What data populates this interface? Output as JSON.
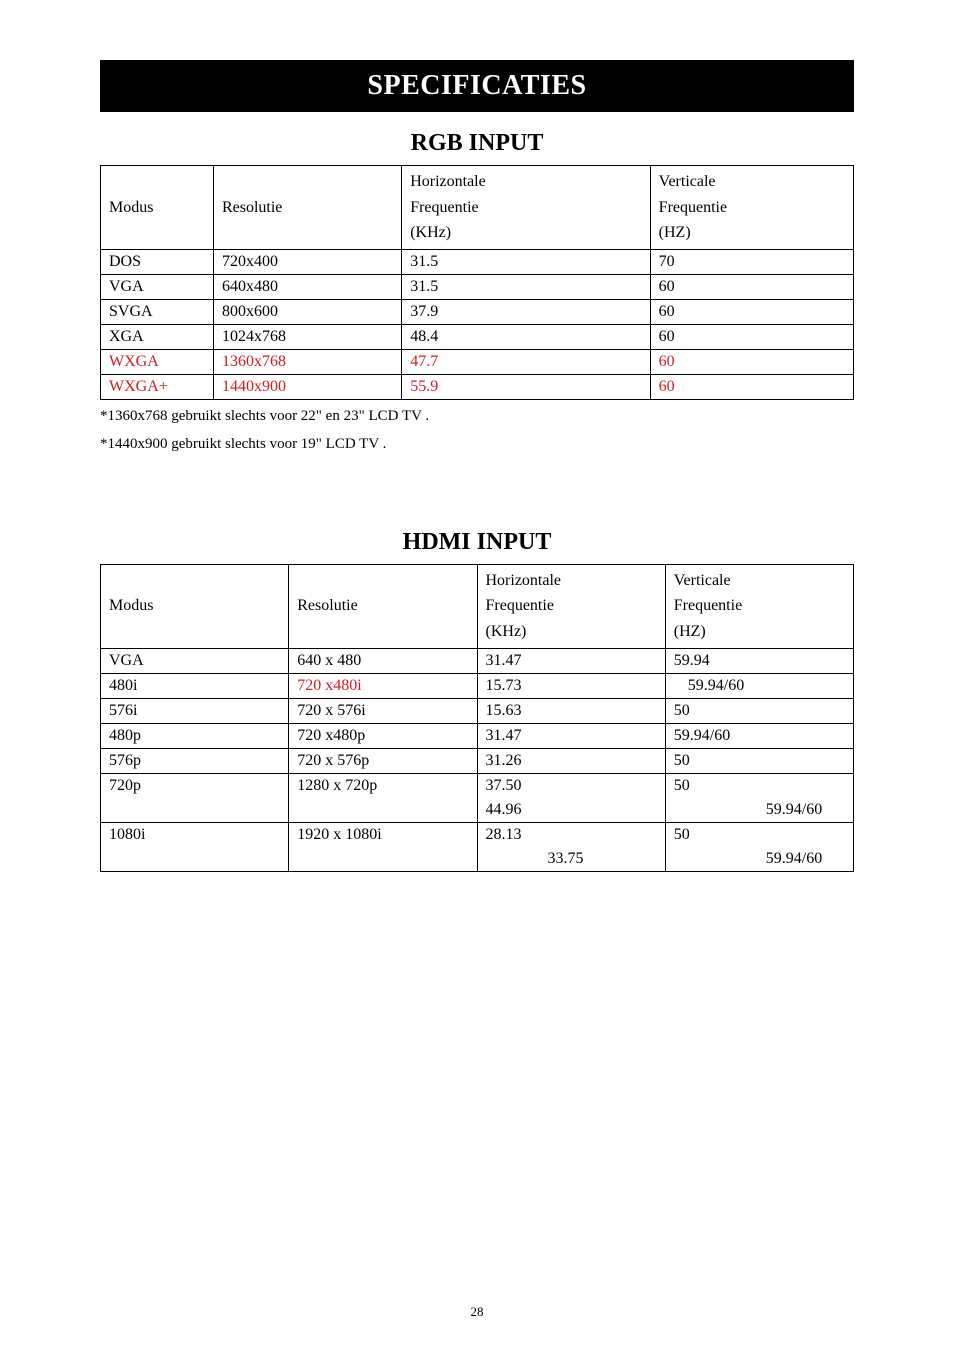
{
  "banner_title": "SPECIFICATIES",
  "page_number": "28",
  "rgb": {
    "title": "RGB INPUT",
    "headers": {
      "modus": "Modus",
      "resolutie": "Resolutie",
      "h1": "Horizontale",
      "h2": "Frequentie",
      "h3": "(KHz)",
      "v1": "Verticale",
      "v2": "Frequentie",
      "v3": "(HZ)"
    },
    "rows": [
      {
        "modus": "DOS",
        "res": "720x400",
        "h": "31.5",
        "v": "70",
        "red": false
      },
      {
        "modus": "VGA",
        "res": "640x480",
        "h": "31.5",
        "v": "60",
        "red": false
      },
      {
        "modus": "SVGA",
        "res": "800x600",
        "h": "37.9",
        "v": "60",
        "red": false
      },
      {
        "modus": "XGA",
        "res": "1024x768",
        "h": "48.4",
        "v": "60",
        "red": false
      },
      {
        "modus": "WXGA",
        "res": "1360x768",
        "h": "47.7",
        "v": "60",
        "red": true
      },
      {
        "modus": "WXGA+",
        "res": "1440x900",
        "h": "55.9",
        "v": "60",
        "red": true
      }
    ],
    "footnote1": "*1360x768 gebruikt slechts voor 22\" en 23\" LCD TV .",
    "footnote2": "*1440x900 gebruikt slechts voor 19\" LCD TV ."
  },
  "hdmi": {
    "title": "HDMI INPUT",
    "headers": {
      "modus": "Modus",
      "resolutie": "Resolutie",
      "h1": "Horizontale",
      "h2": "Frequentie",
      "h3": "(KHz)",
      "v1": "Verticale",
      "v2": "Frequentie",
      "v3": "(HZ)"
    },
    "rows_simple": [
      {
        "modus": "VGA",
        "res": "640 x 480",
        "res_red": false,
        "h": "31.47",
        "v": "59.94",
        "v_indent": ""
      },
      {
        "modus": "480i",
        "res": "720 x480i",
        "res_red": true,
        "h": "15.73",
        "v": "59.94/60",
        "v_indent": "indent-small"
      },
      {
        "modus": "576i",
        "res": "720 x 576i",
        "res_red": false,
        "h": "15.63",
        "v": "50",
        "v_indent": ""
      },
      {
        "modus": "480p",
        "res": "720 x480p",
        "res_red": false,
        "h": "31.47",
        "v": "59.94/60",
        "v_indent": ""
      },
      {
        "modus": "576p",
        "res": "720 x 576p",
        "res_red": false,
        "h": "31.26",
        "v": "50",
        "v_indent": ""
      }
    ],
    "row_720p": {
      "modus": "720p",
      "res": "1280 x 720p",
      "h_a": "37.50",
      "v_a": "50",
      "h_b": "44.96",
      "v_b": "59.94/60"
    },
    "row_1080i": {
      "modus": "1080i",
      "res": "1920 x 1080i",
      "h_a": "28.13",
      "v_a": "50",
      "h_b": "33.75",
      "v_b": "59.94/60"
    }
  }
}
